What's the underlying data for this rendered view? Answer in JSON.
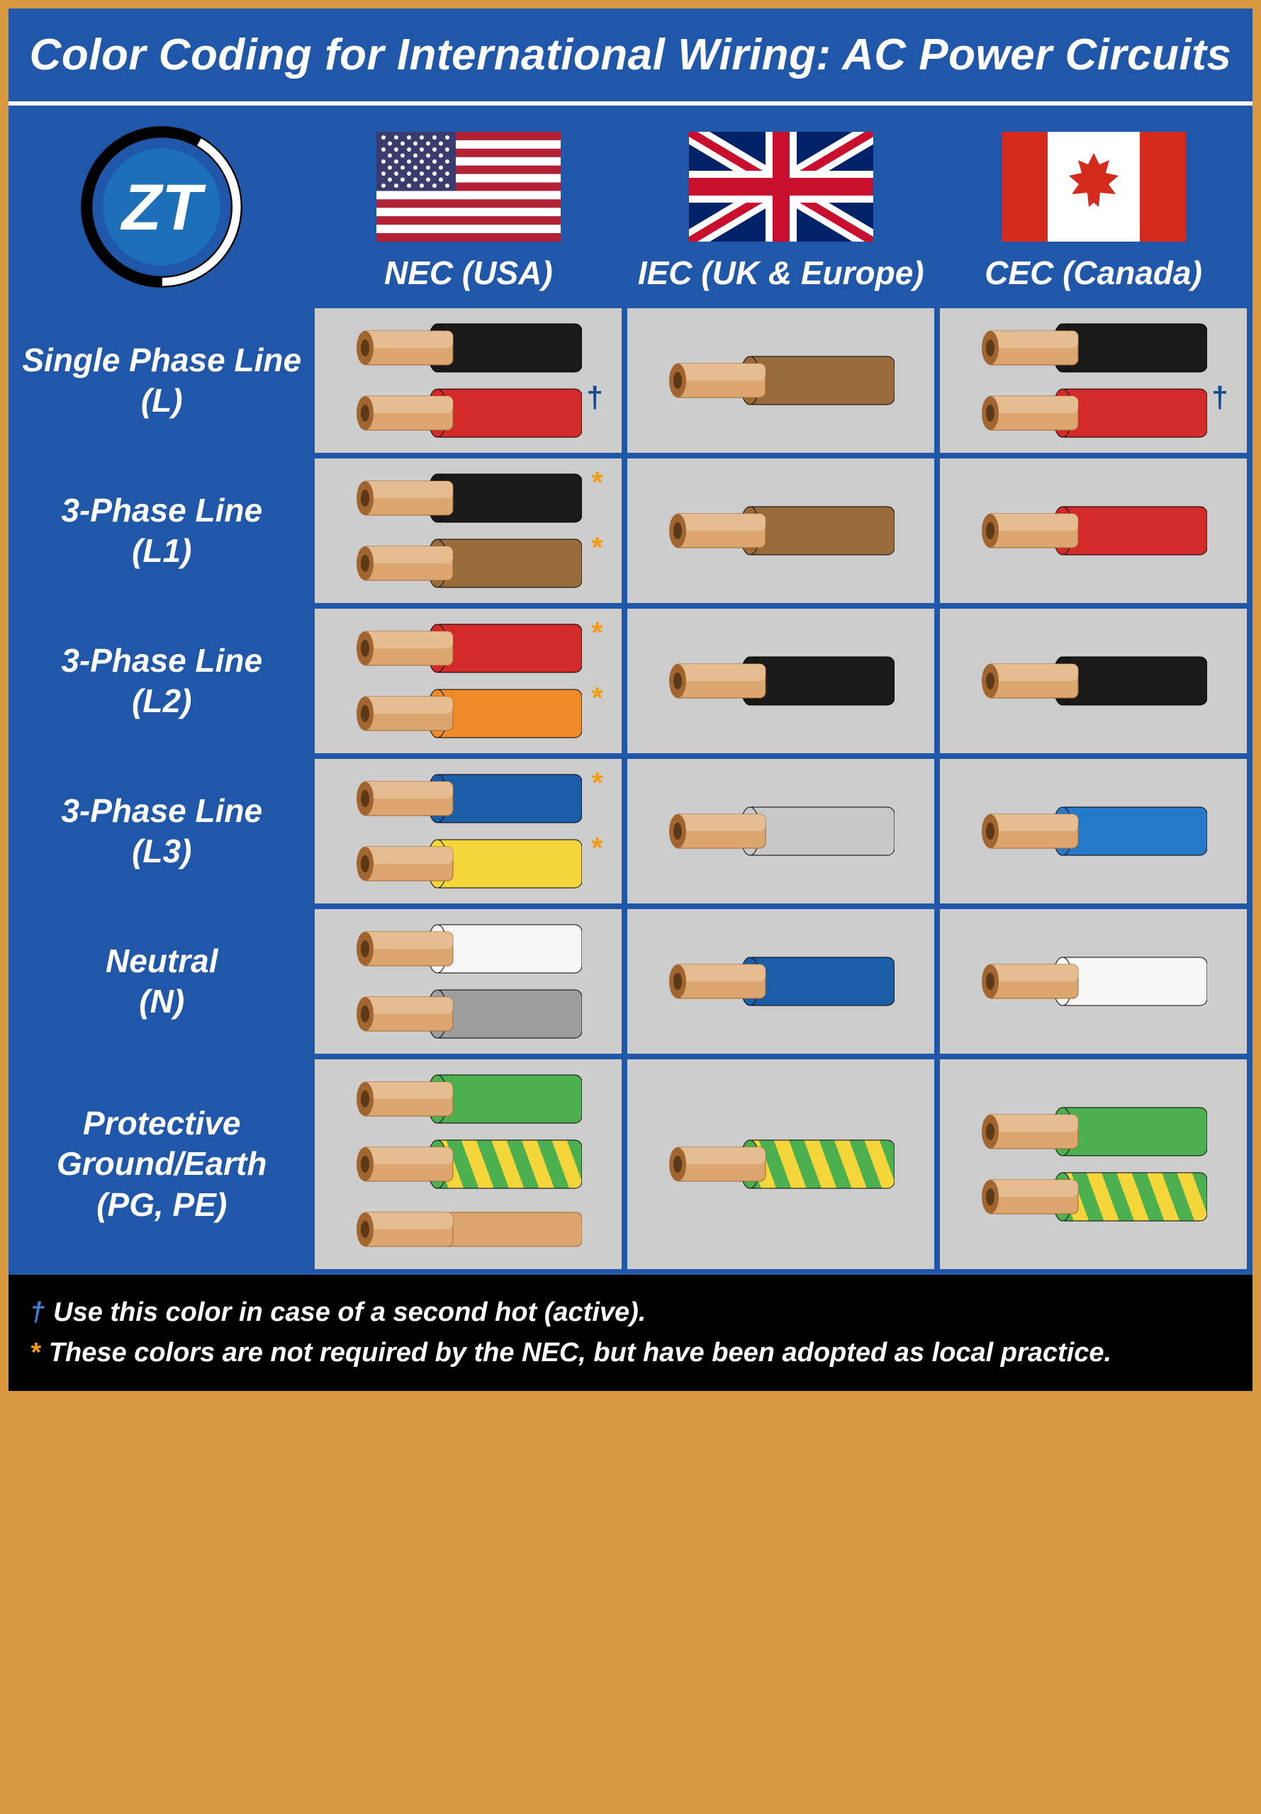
{
  "title": "Color Coding for International Wiring: AC Power Circuits",
  "columns": [
    {
      "label": "NEC (USA)",
      "flag": "usa"
    },
    {
      "label": "IEC (UK & Europe)",
      "flag": "uk"
    },
    {
      "label": "CEC (Canada)",
      "flag": "canada"
    }
  ],
  "wire_colors": {
    "black": {
      "insulation": "#1a1a1a",
      "stripe": null
    },
    "red": {
      "insulation": "#d42a2a",
      "stripe": null
    },
    "brown": {
      "insulation": "#9a6b3a",
      "stripe": null
    },
    "orange": {
      "insulation": "#ef8a28",
      "stripe": null
    },
    "yellow": {
      "insulation": "#f4d63b",
      "stripe": null
    },
    "blue_dark": {
      "insulation": "#1c5da8",
      "stripe": null
    },
    "blue": {
      "insulation": "#2779c9",
      "stripe": null
    },
    "grey_light": {
      "insulation": "#c8c8c8",
      "stripe": null
    },
    "white": {
      "insulation": "#f7f7f7",
      "stripe": null
    },
    "grey": {
      "insulation": "#9e9e9e",
      "stripe": null
    },
    "green": {
      "insulation": "#4caf50",
      "stripe": null
    },
    "green_yellow": {
      "insulation": "#4caf50",
      "stripe": "#f4d63b"
    },
    "bare": {
      "insulation": null,
      "stripe": null
    }
  },
  "copper": {
    "light": "#dba670",
    "dark": "#a3652f",
    "hole": "#5b3a1a"
  },
  "rows": [
    {
      "label": "Single Phase Line\n(L)",
      "cells": [
        {
          "wires": [
            {
              "c": "black"
            },
            {
              "c": "red",
              "note": "dagger"
            }
          ]
        },
        {
          "wires": [
            {
              "c": "brown"
            }
          ]
        },
        {
          "wires": [
            {
              "c": "black"
            },
            {
              "c": "red",
              "note": "dagger"
            }
          ]
        }
      ]
    },
    {
      "label": "3-Phase Line\n(L1)",
      "cells": [
        {
          "wires": [
            {
              "c": "black",
              "note": "asterisk"
            },
            {
              "c": "brown",
              "note": "asterisk"
            }
          ]
        },
        {
          "wires": [
            {
              "c": "brown"
            }
          ]
        },
        {
          "wires": [
            {
              "c": "red"
            }
          ]
        }
      ]
    },
    {
      "label": "3-Phase Line\n(L2)",
      "cells": [
        {
          "wires": [
            {
              "c": "red",
              "note": "asterisk"
            },
            {
              "c": "orange",
              "note": "asterisk"
            }
          ]
        },
        {
          "wires": [
            {
              "c": "black"
            }
          ]
        },
        {
          "wires": [
            {
              "c": "black"
            }
          ]
        }
      ]
    },
    {
      "label": "3-Phase Line\n(L3)",
      "cells": [
        {
          "wires": [
            {
              "c": "blue_dark",
              "note": "asterisk"
            },
            {
              "c": "yellow",
              "note": "asterisk"
            }
          ]
        },
        {
          "wires": [
            {
              "c": "grey_light"
            }
          ]
        },
        {
          "wires": [
            {
              "c": "blue"
            }
          ]
        }
      ]
    },
    {
      "label": "Neutral\n(N)",
      "cells": [
        {
          "wires": [
            {
              "c": "white"
            },
            {
              "c": "grey"
            }
          ]
        },
        {
          "wires": [
            {
              "c": "blue_dark"
            }
          ]
        },
        {
          "wires": [
            {
              "c": "white"
            }
          ]
        }
      ]
    },
    {
      "label": "Protective\nGround/Earth\n(PG, PE)",
      "cells": [
        {
          "wires": [
            {
              "c": "green"
            },
            {
              "c": "green_yellow"
            },
            {
              "c": "bare"
            }
          ]
        },
        {
          "wires": [
            {
              "c": "green_yellow"
            }
          ]
        },
        {
          "wires": [
            {
              "c": "green"
            },
            {
              "c": "green_yellow"
            }
          ]
        }
      ]
    }
  ],
  "footer": {
    "dagger": "Use this color in case of a second hot (active).",
    "asterisk": "These colors are not required by the NEC, but have been adopted as local practice."
  },
  "logo_text": "ZT"
}
